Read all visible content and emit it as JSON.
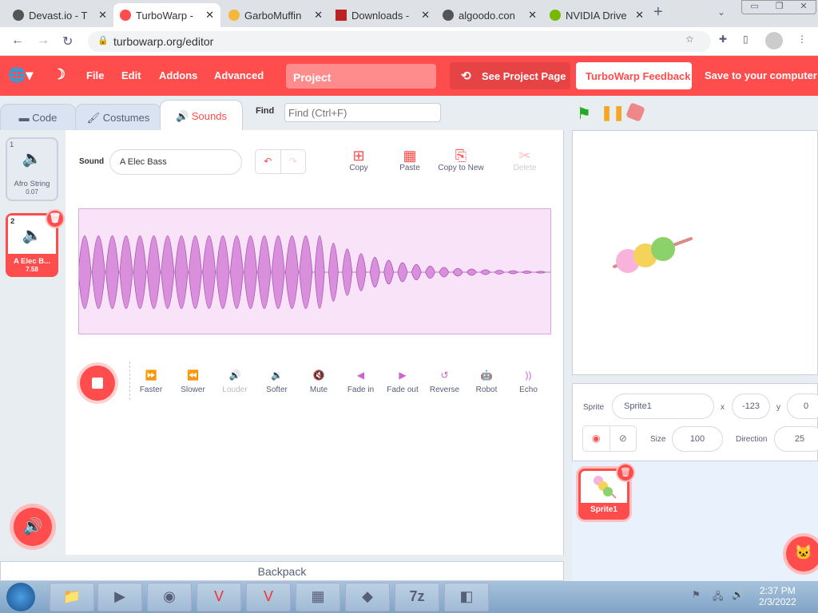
{
  "browser": {
    "tabs": [
      {
        "title": "Devast.io - T"
      },
      {
        "title": "TurboWarp -"
      },
      {
        "title": "GarboMuffin"
      },
      {
        "title": "Downloads -"
      },
      {
        "title": "algoodo.con"
      },
      {
        "title": "NVIDIA Drive"
      }
    ],
    "url": "turbowarp.org/editor"
  },
  "menu": {
    "file": "File",
    "edit": "Edit",
    "addons": "Addons",
    "advanced": "Advanced",
    "project_title": "Project",
    "see_project": "See Project Page",
    "feedback": "TurboWarp Feedback",
    "save": "Save to your computer"
  },
  "tabs": {
    "code": "Code",
    "costumes": "Costumes",
    "sounds": "Sounds"
  },
  "find": {
    "label": "Find",
    "placeholder": "Find (Ctrl+F)"
  },
  "sounds": [
    {
      "index": "1",
      "name": "Afro String",
      "duration": "0.07"
    },
    {
      "index": "2",
      "name": "A Elec B...",
      "duration": "7.58"
    }
  ],
  "editor": {
    "sound_label": "Sound",
    "sound_name": "A Elec Bass",
    "copy": "Copy",
    "paste": "Paste",
    "copy_to_new": "Copy to New",
    "delete": "Delete",
    "effects": [
      "Faster",
      "Slower",
      "Louder",
      "Softer",
      "Mute",
      "Fade in",
      "Fade out",
      "Reverse",
      "Robot",
      "Echo"
    ]
  },
  "sprite": {
    "label": "Sprite",
    "name": "Sprite1",
    "x_label": "x",
    "x": "-123",
    "y_label": "y",
    "y": "0",
    "size_label": "Size",
    "size": "100",
    "direction_label": "Direction",
    "direction": "25"
  },
  "sprite_list": [
    {
      "name": "Sprite1"
    }
  ],
  "backpack": "Backpack",
  "clock": {
    "time": "2:37 PM",
    "date": "2/3/2022"
  },
  "colors": {
    "accent": "#ff4c4c",
    "sound": "#cf63cf"
  }
}
